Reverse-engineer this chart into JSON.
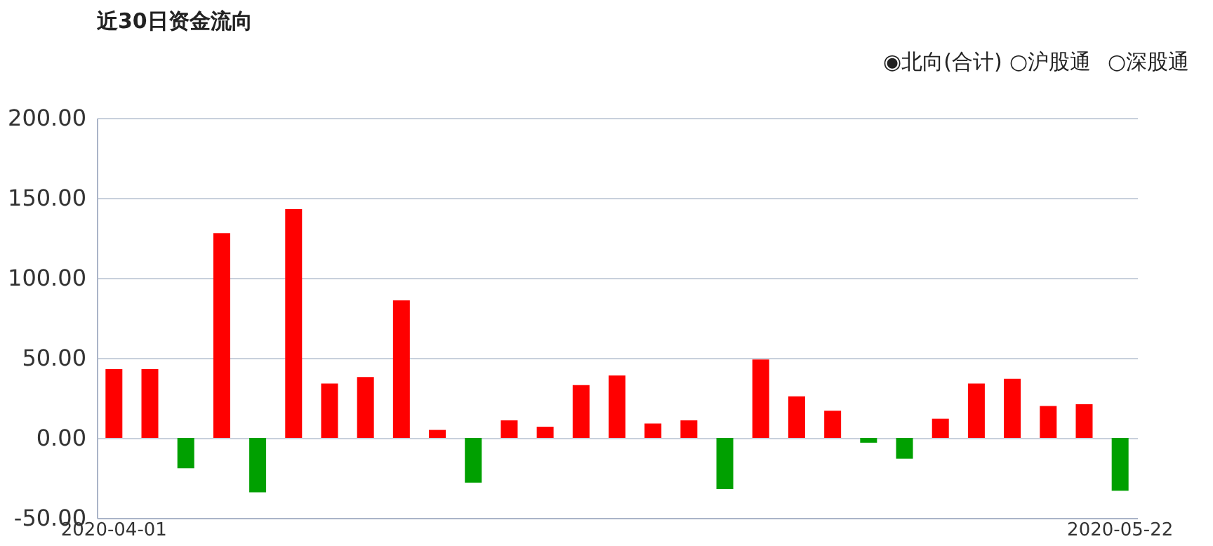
{
  "chart_data": {
    "type": "bar",
    "title": "近30日资金流向",
    "annotations": [
      "◉北向(合计)",
      "○沪股通",
      "○深股通"
    ],
    "categories": [
      "2020-04-01",
      null,
      null,
      null,
      null,
      null,
      null,
      null,
      null,
      null,
      null,
      null,
      null,
      null,
      null,
      null,
      null,
      null,
      null,
      null,
      null,
      null,
      null,
      null,
      null,
      null,
      null,
      null,
      "2020-05-22"
    ],
    "values": [
      43,
      43,
      -19,
      128,
      -34,
      143,
      34,
      38,
      86,
      5,
      -28,
      11,
      7,
      33,
      39,
      9,
      11,
      -32,
      49,
      26,
      17,
      -3,
      -13,
      12,
      34,
      37,
      20,
      21,
      -33
    ],
    "colors": [
      "#ff0000",
      "#ff0000",
      "#00a000",
      "#ff0000",
      "#00a000",
      "#ff0000",
      "#ff0000",
      "#ff0000",
      "#ff0000",
      "#ff0000",
      "#00a000",
      "#ff0000",
      "#ff0000",
      "#ff0000",
      "#ff0000",
      "#ff0000",
      "#ff0000",
      "#00a000",
      "#ff0000",
      "#ff0000",
      "#ff0000",
      "#00a000",
      "#00a000",
      "#ff0000",
      "#ff0000",
      "#ff0000",
      "#ff0000",
      "#ff0000",
      "#00a000"
    ],
    "ylim": [
      -50,
      200
    ],
    "yticks": [
      {
        "value": -50,
        "label": "-50.00"
      },
      {
        "value": 0,
        "label": "0.00"
      },
      {
        "value": 50,
        "label": "50.00"
      },
      {
        "value": 100,
        "label": "100.00"
      },
      {
        "value": 150,
        "label": "150.00"
      },
      {
        "value": 200,
        "label": "200.00"
      }
    ],
    "grid": "y"
  }
}
